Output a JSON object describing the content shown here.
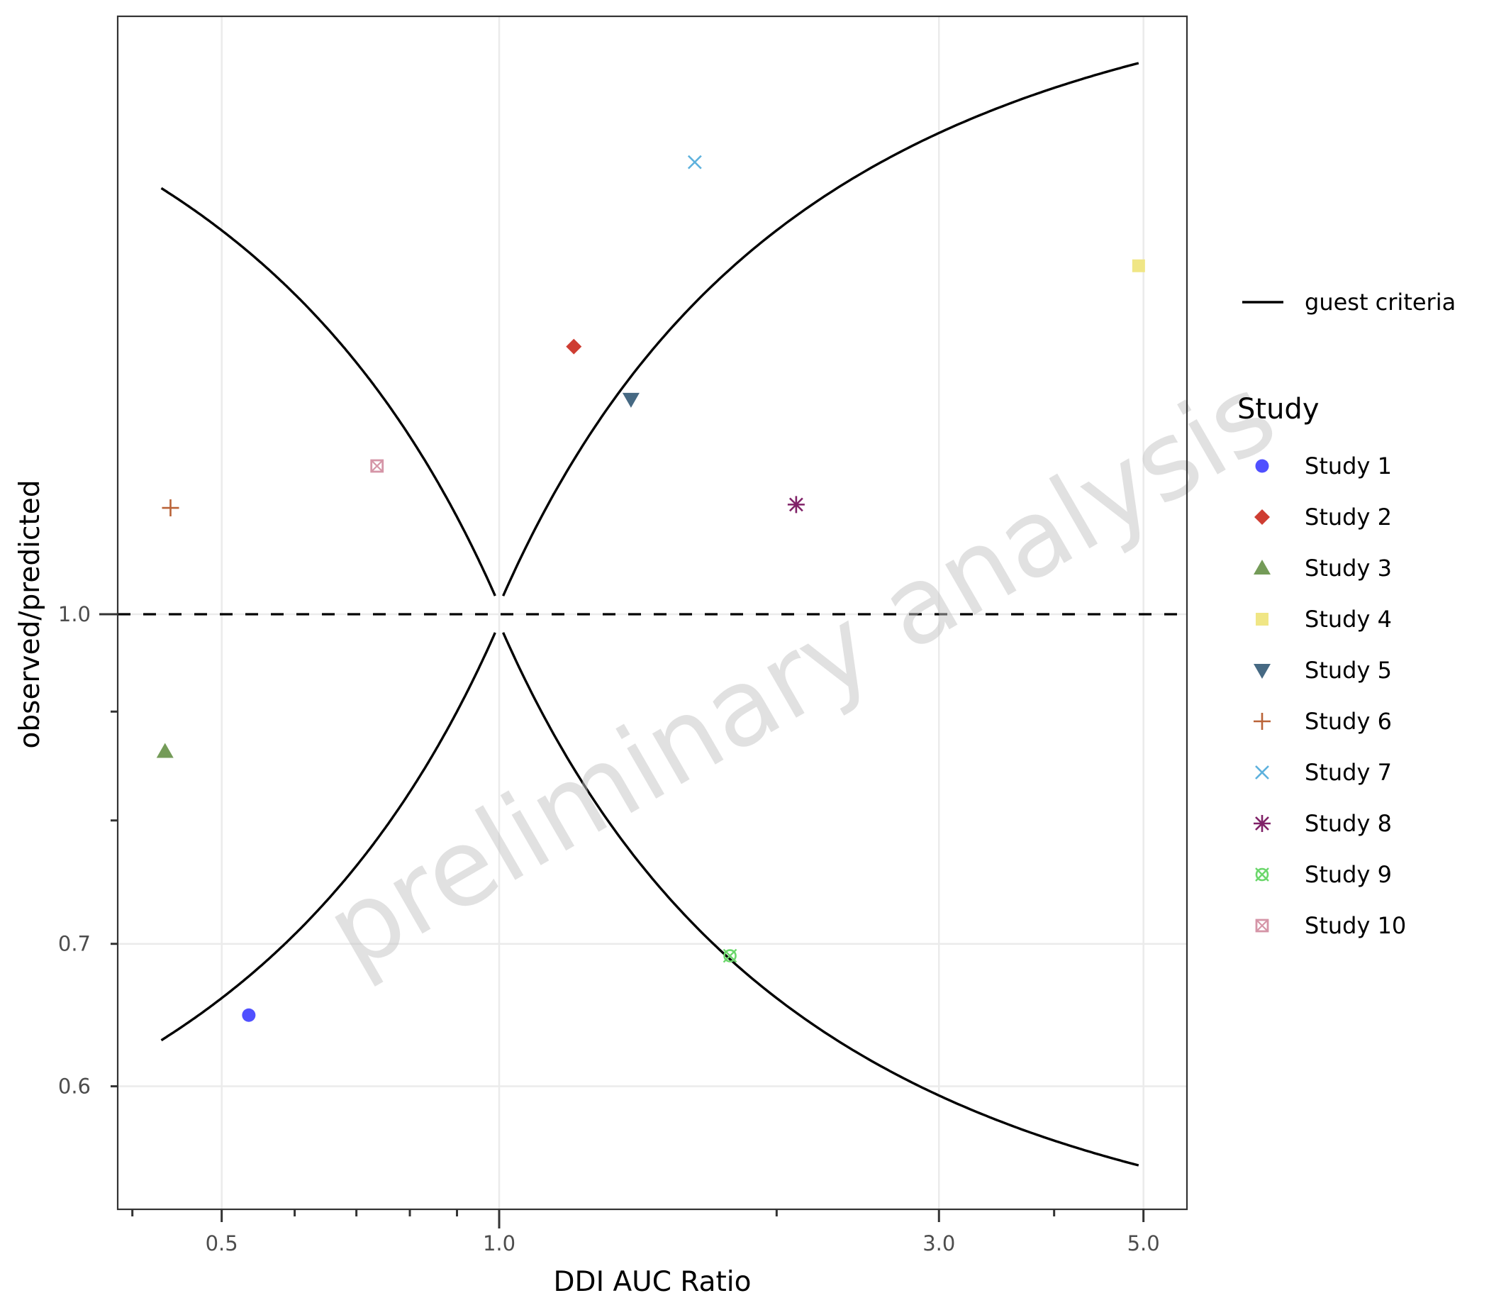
{
  "chart_data": {
    "type": "scatter",
    "title": "",
    "xlabel": "DDI AUC Ratio",
    "ylabel": "observed/predicted",
    "x_scale": "log10",
    "y_scale": "log10",
    "xlim": [
      0.38,
      5.7
    ],
    "ylim": [
      0.555,
      1.92
    ],
    "x_ticks": [
      {
        "value": 0.5,
        "label": "0.5",
        "major": true
      },
      {
        "value": 1.0,
        "label": "1.0",
        "major": true
      },
      {
        "value": 3.0,
        "label": "3.0",
        "major": true
      },
      {
        "value": 5.0,
        "label": "5.0",
        "major": true
      }
    ],
    "x_minor_ticks": [
      0.4,
      0.6,
      0.7,
      0.8,
      0.9,
      2.0,
      4.0
    ],
    "y_ticks": [
      {
        "value": 1.0,
        "label": "1.0"
      },
      {
        "value": 0.7,
        "label": "0.7"
      },
      {
        "value": 0.6,
        "label": "0.6"
      }
    ],
    "y_minor_ticks": [
      0.9,
      0.8
    ],
    "grid": true,
    "reference_line": {
      "y": 1.0,
      "style": "dashed",
      "color": "#000000"
    },
    "guest_criteria": {
      "label": "guest criteria",
      "delta": 1,
      "x_range": [
        0.43,
        4.94
      ],
      "color": "#000000"
    },
    "legend_position": "right",
    "legend_title": "Study",
    "watermark": "preliminary analysis",
    "series": [
      {
        "name": "Study 1",
        "shape": "circle",
        "color": "#5050ff",
        "x": 0.535,
        "y": 0.648
      },
      {
        "name": "Study 2",
        "shape": "diamond",
        "color": "#ce3d32",
        "x": 1.205,
        "y": 1.336
      },
      {
        "name": "Study 3",
        "shape": "triangle-up",
        "color": "#749b58",
        "x": 0.434,
        "y": 0.862
      },
      {
        "name": "Study 4",
        "shape": "square",
        "color": "#f0e685",
        "x": 4.94,
        "y": 1.458
      },
      {
        "name": "Study 5",
        "shape": "triangle-down",
        "color": "#466983",
        "x": 1.39,
        "y": 1.262
      },
      {
        "name": "Study 6",
        "shape": "plus",
        "color": "#ba6338",
        "x": 0.44,
        "y": 1.122
      },
      {
        "name": "Study 7",
        "shape": "cross",
        "color": "#5db1dd",
        "x": 1.63,
        "y": 1.631
      },
      {
        "name": "Study 8",
        "shape": "asterisk",
        "color": "#802268",
        "x": 2.1,
        "y": 1.126
      },
      {
        "name": "Study 9",
        "shape": "circle-cross",
        "color": "#6bd76b",
        "x": 1.78,
        "y": 0.691
      },
      {
        "name": "Study 10",
        "shape": "square-cross",
        "color": "#d595a7",
        "x": 0.737,
        "y": 1.174
      }
    ]
  }
}
